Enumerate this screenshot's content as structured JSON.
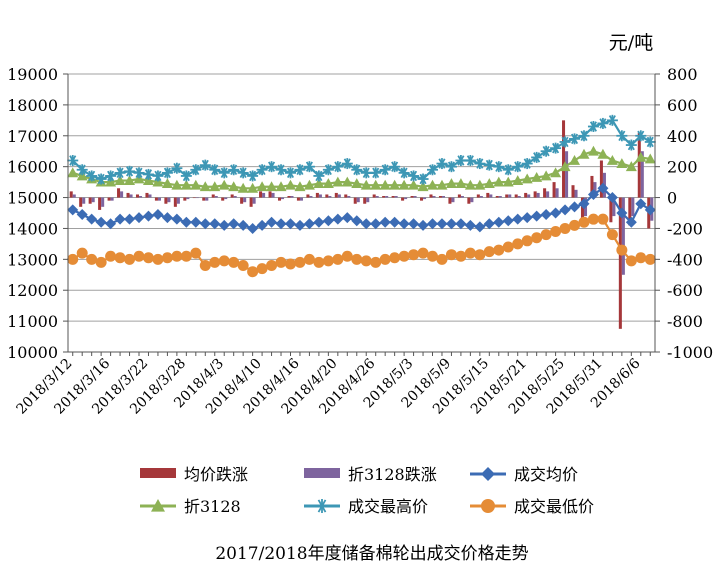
{
  "chart_data": {
    "type": "bar-line-combo",
    "title": "2017/2018年度储备棉轮出成交价格走势",
    "ylabel_right": "元/吨",
    "ylim_left": [
      10000,
      19000
    ],
    "ylim_right": [
      -1000,
      800
    ],
    "yticks_left": [
      10000,
      11000,
      12000,
      13000,
      14000,
      15000,
      16000,
      17000,
      18000,
      19000
    ],
    "yticks_right": [
      -1000,
      -800,
      -600,
      -400,
      -200,
      0,
      200,
      400,
      600,
      800
    ],
    "x_tick_labels": [
      "2018/3/12",
      "2018/3/16",
      "2018/3/22",
      "2018/3/28",
      "2018/4/3",
      "2018/4/10",
      "2018/4/16",
      "2018/4/20",
      "2018/4/26",
      "2018/5/3",
      "2018/5/9",
      "2018/5/15",
      "2018/5/21",
      "2018/5/25",
      "2018/5/31",
      "2018/6/6"
    ],
    "x_tick_every": 4,
    "n_points": 62,
    "legend": [
      {
        "key": "bar1",
        "label": "均价跌涨",
        "color": "#A5373A",
        "kind": "bar"
      },
      {
        "key": "bar2",
        "label": "折3128跌涨",
        "color": "#7E649E",
        "kind": "bar"
      },
      {
        "key": "avg",
        "label": "成交均价",
        "color": "#3C6CB4",
        "kind": "diamond"
      },
      {
        "key": "z3128",
        "label": "折3128",
        "color": "#8DB255",
        "kind": "triangle"
      },
      {
        "key": "max",
        "label": "成交最高价",
        "color": "#3D97B5",
        "kind": "star"
      },
      {
        "key": "min",
        "label": "成交最低价",
        "color": "#E58C36",
        "kind": "circle"
      }
    ],
    "series": [
      {
        "name": "成交均价",
        "axis": "left",
        "values": [
          14600,
          14450,
          14300,
          14200,
          14150,
          14300,
          14300,
          14350,
          14400,
          14450,
          14350,
          14300,
          14200,
          14200,
          14150,
          14150,
          14100,
          14150,
          14100,
          14000,
          14100,
          14200,
          14150,
          14150,
          14100,
          14150,
          14200,
          14250,
          14300,
          14350,
          14250,
          14150,
          14150,
          14200,
          14200,
          14150,
          14150,
          14100,
          14150,
          14150,
          14150,
          14150,
          14100,
          14050,
          14150,
          14200,
          14250,
          14300,
          14350,
          14400,
          14450,
          14500,
          14600,
          14700,
          14800,
          15100,
          15300,
          15000,
          14500,
          14200,
          14800,
          14600
        ]
      },
      {
        "name": "折3128",
        "axis": "left",
        "values": [
          15800,
          15700,
          15600,
          15500,
          15500,
          15550,
          15550,
          15600,
          15550,
          15500,
          15450,
          15400,
          15400,
          15400,
          15350,
          15350,
          15400,
          15350,
          15300,
          15300,
          15350,
          15350,
          15350,
          15400,
          15350,
          15400,
          15450,
          15450,
          15500,
          15500,
          15450,
          15400,
          15400,
          15400,
          15400,
          15400,
          15400,
          15350,
          15400,
          15400,
          15450,
          15450,
          15400,
          15400,
          15450,
          15500,
          15500,
          15550,
          15600,
          15650,
          15700,
          15800,
          16000,
          16200,
          16400,
          16500,
          16400,
          16200,
          16100,
          16000,
          16300,
          16250
        ]
      },
      {
        "name": "成交最高价",
        "axis": "left",
        "values": [
          16200,
          15900,
          15700,
          15600,
          15700,
          15800,
          15850,
          15800,
          15750,
          15700,
          15800,
          15950,
          15700,
          15900,
          16050,
          15900,
          15800,
          15900,
          15800,
          15700,
          15900,
          16000,
          15900,
          15800,
          15900,
          16000,
          15700,
          15900,
          16000,
          16100,
          15900,
          15800,
          15800,
          15900,
          16000,
          15800,
          15700,
          15600,
          15900,
          16100,
          16000,
          16200,
          16200,
          16100,
          16050,
          16000,
          15900,
          16000,
          16100,
          16300,
          16500,
          16600,
          16800,
          16900,
          17000,
          17300,
          17400,
          17500,
          17000,
          16700,
          17000,
          16800
        ]
      },
      {
        "name": "成交最低价",
        "axis": "left",
        "values": [
          13000,
          13200,
          13000,
          12900,
          13100,
          13050,
          13000,
          13100,
          13050,
          13000,
          13050,
          13100,
          13100,
          13200,
          12800,
          12900,
          12950,
          12900,
          12800,
          12600,
          12700,
          12800,
          12900,
          12850,
          12900,
          13000,
          12900,
          12950,
          13000,
          13100,
          13000,
          12950,
          12900,
          13000,
          13050,
          13100,
          13150,
          13200,
          13100,
          13000,
          13150,
          13100,
          13200,
          13150,
          13250,
          13300,
          13400,
          13500,
          13600,
          13700,
          13800,
          13900,
          14000,
          14100,
          14200,
          14300,
          14300,
          13800,
          13300,
          12950,
          13050,
          13000
        ]
      },
      {
        "name": "均价跌涨",
        "axis": "right",
        "kind": "bar",
        "values": [
          40,
          -60,
          -40,
          -80,
          -20,
          60,
          30,
          20,
          30,
          -20,
          -40,
          -60,
          -20,
          0,
          -20,
          20,
          -20,
          20,
          -40,
          -60,
          40,
          40,
          -20,
          10,
          -20,
          20,
          30,
          20,
          30,
          20,
          -40,
          -40,
          20,
          10,
          10,
          -20,
          10,
          -20,
          20,
          10,
          -40,
          20,
          -40,
          20,
          30,
          10,
          20,
          20,
          30,
          40,
          60,
          100,
          500,
          80,
          -160,
          140,
          240,
          -160,
          -850,
          -180,
          420,
          -200
        ]
      },
      {
        "name": "折3128跌涨",
        "axis": "right",
        "kind": "bar",
        "values": [
          20,
          -40,
          -30,
          -60,
          -20,
          40,
          20,
          10,
          20,
          -20,
          -30,
          -40,
          -10,
          0,
          -20,
          10,
          -10,
          10,
          -30,
          -40,
          30,
          30,
          -10,
          10,
          -20,
          10,
          20,
          10,
          20,
          10,
          -30,
          -30,
          10,
          10,
          10,
          -10,
          10,
          -10,
          10,
          10,
          -30,
          10,
          -30,
          10,
          20,
          10,
          20,
          10,
          20,
          30,
          40,
          60,
          300,
          50,
          -120,
          100,
          160,
          -120,
          -500,
          -120,
          300,
          -150
        ]
      }
    ]
  }
}
